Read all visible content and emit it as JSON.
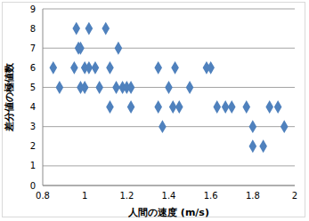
{
  "chart_data": {
    "type": "scatter",
    "x_label": "人間の速度 (m/s)",
    "y_label": "差分値の極値数",
    "x": [
      0.85,
      0.88,
      0.95,
      0.96,
      0.97,
      0.98,
      0.98,
      1.0,
      1.0,
      1.02,
      1.02,
      1.05,
      1.07,
      1.1,
      1.12,
      1.12,
      1.15,
      1.16,
      1.18,
      1.2,
      1.22,
      1.22,
      1.35,
      1.35,
      1.37,
      1.4,
      1.42,
      1.43,
      1.45,
      1.5,
      1.58,
      1.6,
      1.63,
      1.67,
      1.7,
      1.77,
      1.8,
      1.8,
      1.85,
      1.88,
      1.92,
      1.95
    ],
    "values": [
      6,
      5,
      6,
      8,
      7,
      7,
      5,
      6,
      5,
      8,
      6,
      6,
      5,
      8,
      4,
      6,
      5,
      7,
      5,
      5,
      5,
      4,
      6,
      4,
      3,
      5,
      4,
      6,
      4,
      5,
      6,
      6,
      4,
      4,
      4,
      4,
      3,
      2,
      2,
      4,
      4,
      3
    ],
    "xlim": [
      0.8,
      2
    ],
    "ylim": [
      0,
      9
    ],
    "xticks": [
      0.8,
      1,
      1.2,
      1.4,
      1.6,
      1.8,
      2
    ],
    "yticks": [
      0,
      1,
      2,
      3,
      4,
      5,
      6,
      7,
      8,
      9
    ],
    "grid": true,
    "color": "#4f81bd",
    "marker": "diamond"
  }
}
